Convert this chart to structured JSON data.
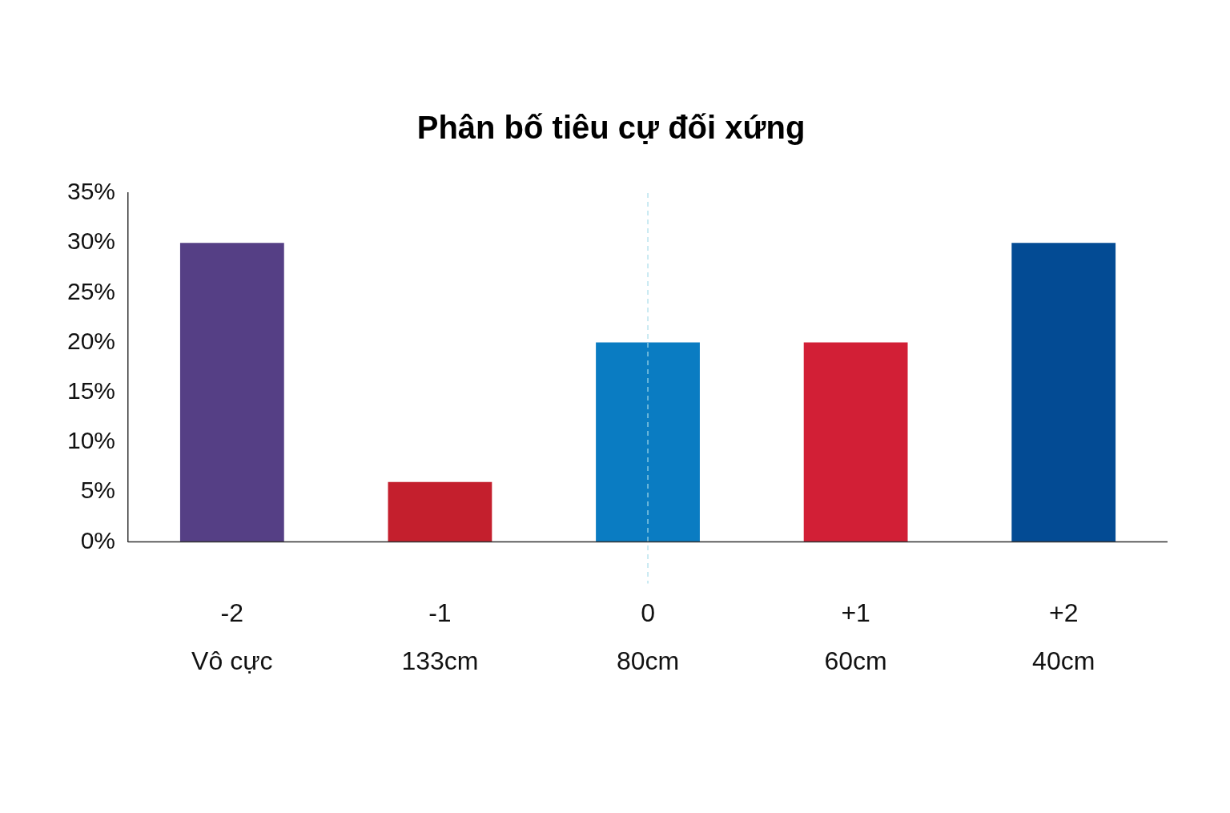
{
  "chart_data": {
    "type": "bar",
    "title": "Phân bố tiêu cự đối xứng",
    "categories": [
      "-2\nVô cực",
      "-1\n133cm",
      "0\n80cm",
      "+1\n60cm",
      "+2\n40cm"
    ],
    "values": [
      30,
      6,
      20,
      20,
      30
    ],
    "colors": [
      "#553f85",
      "#c41f2d",
      "#0a7cc2",
      "#d21f36",
      "#034b94"
    ],
    "ylim": [
      0,
      35
    ],
    "yticks": [
      {
        "value": 0,
        "label": "0%"
      },
      {
        "value": 5,
        "label": "5%"
      },
      {
        "value": 10,
        "label": "10%"
      },
      {
        "value": 15,
        "label": "15%"
      },
      {
        "value": 20,
        "label": "20%"
      },
      {
        "value": 25,
        "label": "25%"
      },
      {
        "value": 30,
        "label": "30%"
      },
      {
        "value": 35,
        "label": "35%"
      }
    ],
    "grid": false,
    "legend": false,
    "ref_lines": [
      {
        "axis": "x",
        "value": "0\n80cm",
        "color": "#a8dcea",
        "line_style": "dashed"
      }
    ]
  }
}
